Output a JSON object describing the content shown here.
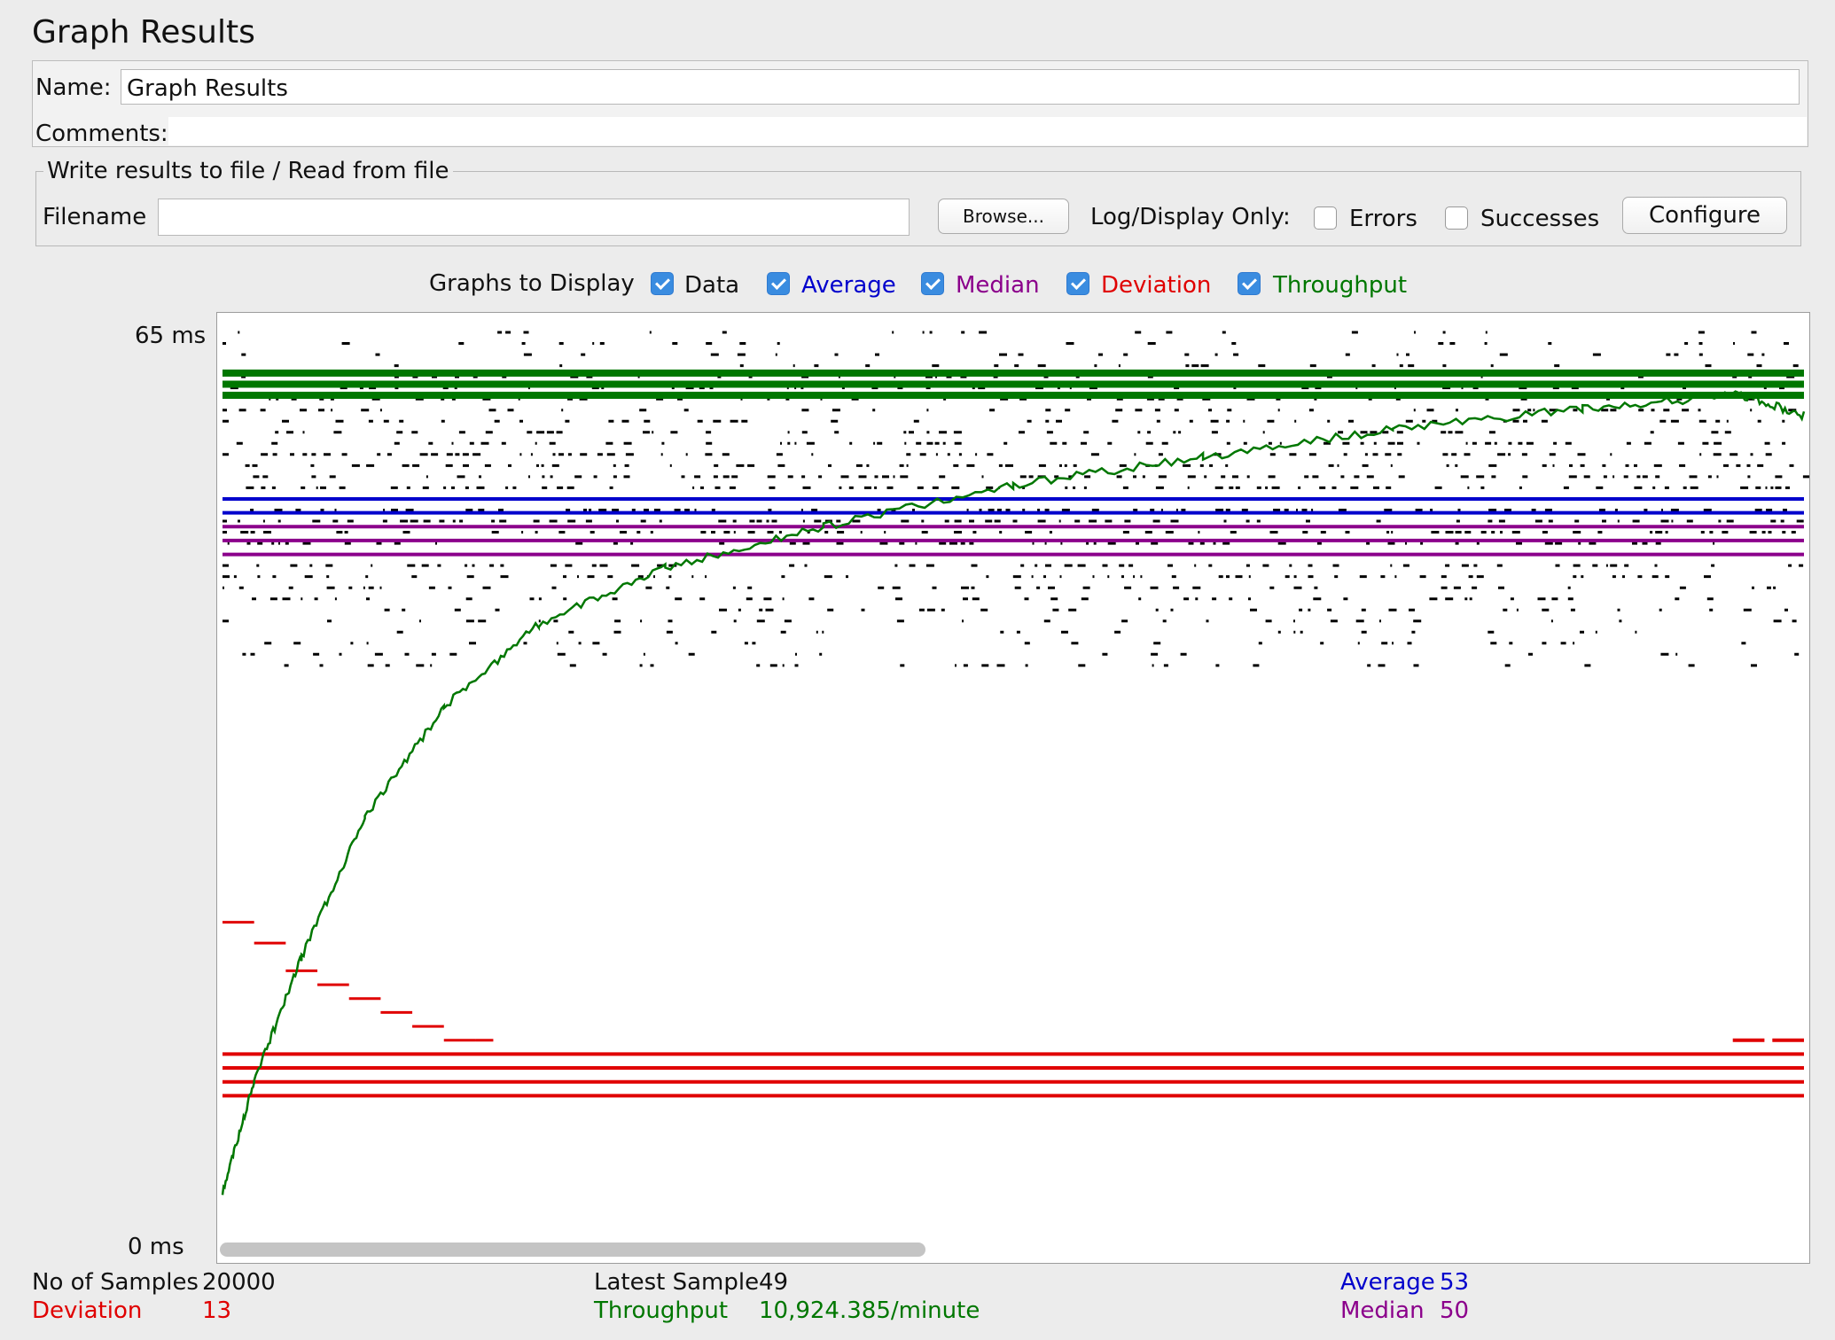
{
  "panel": {
    "title": "Graph Results"
  },
  "name_field": {
    "label": "Name:",
    "value": "Graph Results"
  },
  "comments_field": {
    "label": "Comments:"
  },
  "file_group": {
    "legend": "Write results to file / Read from file",
    "filename_label": "Filename",
    "filename_value": "",
    "browse_button": "Browse...",
    "log_display_label": "Log/Display Only:",
    "errors_label": "Errors",
    "errors_checked": false,
    "successes_label": "Successes",
    "successes_checked": false,
    "configure_button": "Configure"
  },
  "graphs_to_display": {
    "label": "Graphs to Display",
    "options": [
      {
        "label": "Data",
        "checked": true,
        "color": "#000000"
      },
      {
        "label": "Average",
        "checked": true,
        "color": "#0000cc"
      },
      {
        "label": "Median",
        "checked": true,
        "color": "#8b008b"
      },
      {
        "label": "Deviation",
        "checked": true,
        "color": "#e00000"
      },
      {
        "label": "Throughput",
        "checked": true,
        "color": "#007700"
      }
    ]
  },
  "colors": {
    "data": "#000000",
    "average": "#0000cc",
    "median": "#8b008b",
    "deviation": "#e00000",
    "throughput": "#007700"
  },
  "chart_data": {
    "type": "line",
    "ylim": [
      0,
      65
    ],
    "y_unit": "ms",
    "tick_labels": {
      "top": "65  ms",
      "bottom": "0  ms"
    },
    "samples": 20000,
    "series": [
      {
        "name": "Data",
        "color": "#000000",
        "y_band": [
          41,
          65
        ]
      },
      {
        "name": "Average",
        "color": "#0000cc",
        "y_final": 53,
        "levels": [
          53,
          52
        ]
      },
      {
        "name": "Median",
        "color": "#8b008b",
        "y_final": 50,
        "levels": [
          51,
          50,
          49
        ]
      },
      {
        "name": "Deviation",
        "color": "#e00000",
        "y_final": 13,
        "steps": [
          [
            0,
            22.5
          ],
          [
            2,
            21
          ],
          [
            4,
            19
          ],
          [
            6,
            18
          ],
          [
            8,
            17
          ],
          [
            10,
            16
          ],
          [
            12,
            15
          ],
          [
            14,
            14
          ],
          [
            16,
            14
          ]
        ],
        "levels": [
          13,
          12,
          11,
          10
        ]
      },
      {
        "name": "Throughput",
        "color": "#007700",
        "points": [
          [
            0,
            3
          ],
          [
            2,
            11
          ],
          [
            5,
            20
          ],
          [
            9,
            30
          ],
          [
            14,
            38
          ],
          [
            20,
            44
          ],
          [
            28,
            48
          ],
          [
            38,
            51
          ],
          [
            50,
            54
          ],
          [
            62,
            56
          ],
          [
            74,
            58
          ],
          [
            86,
            59.5
          ],
          [
            96,
            60.5
          ],
          [
            100,
            59
          ]
        ]
      }
    ]
  },
  "stats": {
    "samples_label": "No of Samples",
    "samples_value": "20000",
    "latest_label": "Latest Sample",
    "latest_value": "49",
    "average_label": "Average",
    "average_value": "53",
    "deviation_label": "Deviation",
    "deviation_value": "13",
    "throughput_label": "Throughput",
    "throughput_value": "10,924.385/minute",
    "median_label": "Median",
    "median_value": "50"
  }
}
